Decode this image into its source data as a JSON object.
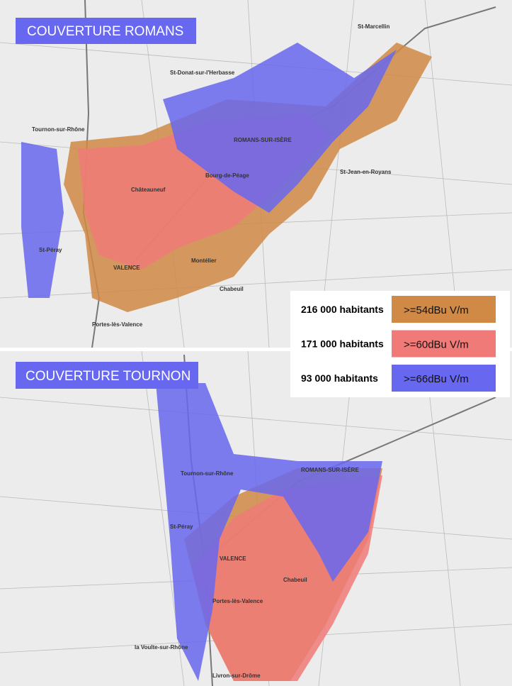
{
  "panels": [
    {
      "title": "COUVERTURE ROMANS",
      "places": [
        "St-Marcellin",
        "ROMANS-SUR-ISÈRE",
        "Tournon-sur-Rhône",
        "VALENCE",
        "St-Péray",
        "Chabeuil",
        "Portes-lès-Valence",
        "Châteauneuf",
        "Bourg-de-Péage",
        "St-Donat-sur-l'Herbasse",
        "St-Jean-en-Royans",
        "Montélier"
      ]
    },
    {
      "title": "COUVERTURE TOURNON",
      "places": [
        "ROMANS-SUR-ISÈRE",
        "Tournon-sur-Rhône",
        "VALENCE",
        "St-Péray",
        "Chabeuil",
        "Portes-lès-Valence",
        "la Voulte-sur-Rhône",
        "Livron-sur-Drôme"
      ]
    }
  ],
  "legend": [
    {
      "population": "216 000 habitants",
      "level": ">=54dBu V/m",
      "color": "#d08a45"
    },
    {
      "population": "171 000 habitants",
      "level": ">=60dBu V/m",
      "color": "#f07a78"
    },
    {
      "population": "93 000 habitants",
      "level": ">=66dBu V/m",
      "color": "#6767ef"
    }
  ]
}
